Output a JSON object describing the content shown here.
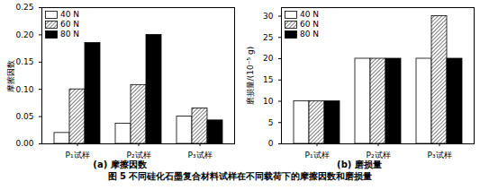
{
  "caption": "图 5 不同硅化石墨复合材料试样在不同载荷下的摩擦因数和磨损量",
  "chart_data": [
    {
      "type": "bar",
      "title": "(a) 摩擦因数",
      "ylabel": "摩擦因数",
      "categories": [
        "P₁试样",
        "P₂试样",
        "P₃试样"
      ],
      "series": [
        {
          "name": "40 N",
          "color": "#ffffff",
          "values": [
            0.02,
            0.037,
            0.05
          ]
        },
        {
          "name": "60 N",
          "color": "#000000",
          "line_style": "hatched",
          "values": [
            0.1,
            0.108,
            0.065
          ]
        },
        {
          "name": "80 N",
          "color": "#000000",
          "values": [
            0.185,
            0.2,
            0.043
          ]
        }
      ],
      "ylim": [
        0,
        0.25
      ],
      "yticks": [
        {
          "value": 0,
          "label": "0.00"
        },
        {
          "value": 0.05,
          "label": "0.05"
        },
        {
          "value": 0.1,
          "label": "0.10"
        },
        {
          "value": 0.15,
          "label": "0.15"
        },
        {
          "value": 0.2,
          "label": "0.20"
        },
        {
          "value": 0.25,
          "label": "0.25"
        }
      ],
      "legend": "top-left",
      "grid": false
    },
    {
      "type": "bar",
      "title": "(b) 磨损量",
      "ylabel": "磨损量/(10⁻⁵ g)",
      "categories": [
        "P₁试样",
        "P₂试样",
        "P₃试样"
      ],
      "series": [
        {
          "name": "40 N",
          "color": "#ffffff",
          "values": [
            10,
            20,
            20
          ]
        },
        {
          "name": "60 N",
          "color": "#000000",
          "line_style": "hatched",
          "values": [
            10,
            20,
            30
          ]
        },
        {
          "name": "80 N",
          "color": "#000000",
          "values": [
            10,
            20,
            20
          ]
        }
      ],
      "ylim": [
        0,
        32
      ],
      "yticks": [
        0,
        5,
        10,
        15,
        20,
        25,
        30
      ],
      "legend": "top-left",
      "grid": false
    }
  ]
}
